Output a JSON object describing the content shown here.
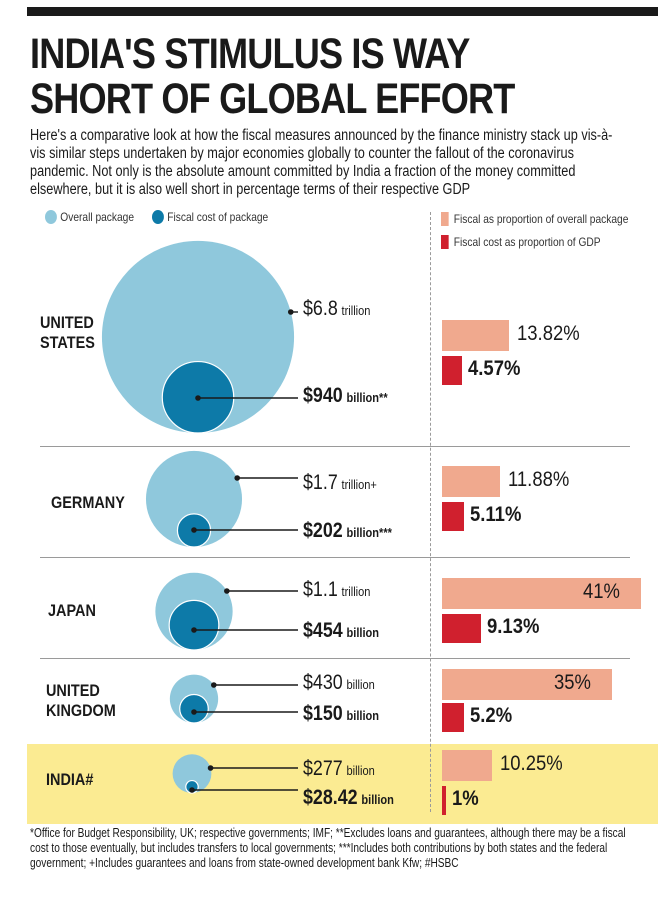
{
  "title_line1": "INDIA'S STIMULUS IS WAY",
  "title_line2": "SHORT OF GLOBAL EFFORT",
  "subtitle": "Here's a comparative look at how the fiscal measures announced by the finance ministry stack up vis-à-vis similar steps undertaken by major economies globally to counter the fallout of the coronavirus pandemic. Not only is the absolute amount committed by India a fraction of the money committed elsewhere, but it is also well short in percentage terms of their respective GDP",
  "footnote": "*Office for Budget Responsibility, UK; respective governments; IMF; **Excludes loans and guarantees, although there may be a fiscal cost to those eventually, but includes transfers to local governments; ***Includes both contributions by both states and the federal government;  +Includes guarantees and loans from state-owned development bank Kfw; #HSBC",
  "colors": {
    "overall_circle": "#8fc8dc",
    "fiscal_circle": "#0d7aa8",
    "pkg_bar": "#f0a98e",
    "gdp_bar": "#d0202e",
    "india_highlight": "#fbeb92"
  },
  "chart_data": {
    "type": "bubble-and-bar",
    "legend": {
      "overall": "Overall package",
      "fiscal": "Fiscal cost of package",
      "pkg_share": "Fiscal as proportion of overall package",
      "gdp_share": "Fiscal cost as proportion of GDP"
    },
    "rows": [
      {
        "country_line1": "UNITED",
        "country_line2": "STATES",
        "overall_value": 6800,
        "overall_amt": "$6.8",
        "overall_unit": "trillion",
        "fiscal_value": 940,
        "fiscal_amt": "$940",
        "fiscal_unit": "billion**",
        "pkg_pct": 13.82,
        "pkg_label": "13.82%",
        "gdp_pct": 4.57,
        "gdp_label": "4.57%"
      },
      {
        "country_line1": "GERMANY",
        "country_line2": "",
        "overall_value": 1700,
        "overall_amt": "$1.7",
        "overall_unit": "trillion+",
        "fiscal_value": 202,
        "fiscal_amt": "$202",
        "fiscal_unit": "billion***",
        "pkg_pct": 11.88,
        "pkg_label": "11.88%",
        "gdp_pct": 5.11,
        "gdp_label": "5.11%"
      },
      {
        "country_line1": "JAPAN",
        "country_line2": "",
        "overall_value": 1100,
        "overall_amt": "$1.1",
        "overall_unit": "trillion",
        "fiscal_value": 454,
        "fiscal_amt": "$454",
        "fiscal_unit": "billion",
        "pkg_pct": 41,
        "pkg_label": "41%",
        "gdp_pct": 9.13,
        "gdp_label": "9.13%"
      },
      {
        "country_line1": "UNITED",
        "country_line2": "KINGDOM",
        "overall_value": 430,
        "overall_amt": "$430",
        "overall_unit": "billion",
        "fiscal_value": 150,
        "fiscal_amt": "$150",
        "fiscal_unit": "billion",
        "pkg_pct": 35,
        "pkg_label": "35%",
        "gdp_pct": 5.2,
        "gdp_label": "5.2%"
      },
      {
        "country_line1": "INDIA#",
        "country_line2": "",
        "overall_value": 277,
        "overall_amt": "$277",
        "overall_unit": "billion",
        "fiscal_value": 28.42,
        "fiscal_amt": "$28.42",
        "fiscal_unit": "billion",
        "pkg_pct": 10.25,
        "pkg_label": "10.25%",
        "gdp_pct": 1,
        "gdp_label": "1%"
      }
    ]
  }
}
